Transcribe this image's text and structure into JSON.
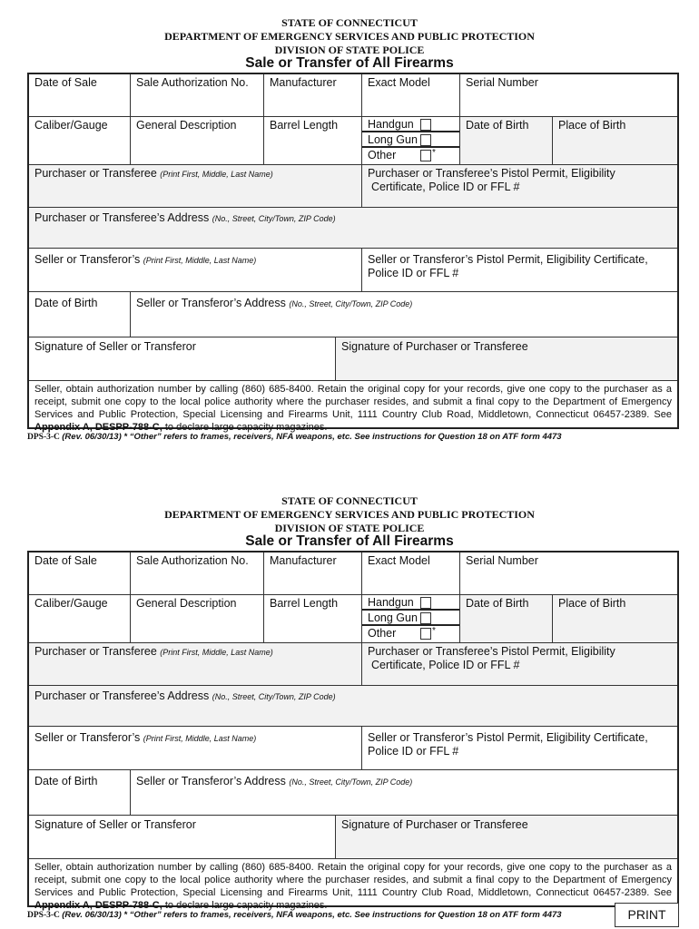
{
  "forms": [
    {
      "state": "STATE OF CONNECTICUT",
      "department": "DEPARTMENT OF EMERGENCY SERVICES AND PUBLIC PROTECTION",
      "division": "DIVISION OF STATE POLICE",
      "title": "Sale or Transfer of All Firearms",
      "date_of_sale": "Date of Sale",
      "sale_auth": "Sale Authorization No.",
      "manufacturer": "Manufacturer",
      "exact_model": "Exact Model",
      "serial_number": "Serial Number",
      "caliber": "Caliber/Gauge",
      "general_description": "General Description",
      "barrel_length": "Barrel Length",
      "handgun": "Handgun",
      "long_gun": "Long Gun",
      "other": "Other",
      "asterisk": "*",
      "date_of_birth": "Date of Birth",
      "place_of_birth": "Place of Birth",
      "purchaser": "Purchaser or Transferee",
      "purchaser_hint": "(Print First, Middle, Last Name)",
      "purchaser_permit": "Purchaser or Transferee’s Pistol Permit, Eligibility",
      "purchaser_permit2": "Certificate, Police ID or FFL #",
      "purchaser_address": "Purchaser or Transferee’s  Address",
      "address_hint": "(No., Street, City/Town, ZIP Code)",
      "seller": "Seller or Transferor’s",
      "seller_hint": "(Print First, Middle, Last Name)",
      "seller_permit": "Seller or Transferor’s Pistol Permit, Eligibility Certificate,",
      "seller_permit2": "Police ID or FFL #",
      "seller_dob": "Date of Birth",
      "seller_address": "Seller or Transferor’s Address",
      "seller_address_hint": "(No., Street, City/Town, ZIP Code)",
      "sig_seller": "Signature of Seller or Transferor",
      "sig_purchaser": "Signature of Purchaser or Transferee",
      "instructions": "Seller, obtain authorization number by calling (860) 685-8400. Retain the original copy for your records, give one copy to the purchaser as a receipt, submit one copy to the local police authority where the purchaser resides, and submit a final copy to the Department of Emergency Services and Public Protection, Special Licensing and Firearms Unit, 1111 Country Club Road, Middletown, Connecticut 06457-2389.  See",
      "appendix": "Appendix A, DESPP-788-C,",
      "appendix_rest": "to declare large capacity magazines.",
      "form_id": "DPS-3-C",
      "footnote": "(Rev. 06/30/13) * “Other” refers to frames, receivers, NFA weapons, etc. See instructions for Question 18 on ATF form 4473"
    },
    {
      "state": "STATE OF CONNECTICUT",
      "department": "DEPARTMENT OF EMERGENCY SERVICES AND PUBLIC PROTECTION",
      "division": "DIVISION OF STATE POLICE",
      "title": "Sale or Transfer of All Firearms",
      "date_of_sale": "Date of Sale",
      "sale_auth": "Sale Authorization No.",
      "manufacturer": "Manufacturer",
      "exact_model": "Exact Model",
      "serial_number": "Serial Number",
      "caliber": "Caliber/Gauge",
      "general_description": "General Description",
      "barrel_length": "Barrel Length",
      "handgun": "Handgun",
      "long_gun": "Long Gun",
      "other": "Other",
      "asterisk": "*",
      "date_of_birth": "Date of Birth",
      "place_of_birth": "Place of Birth",
      "purchaser": "Purchaser or Transferee",
      "purchaser_hint": "(Print First, Middle, Last Name)",
      "purchaser_permit": "Purchaser or Transferee’s Pistol Permit, Eligibility",
      "purchaser_permit2": "Certificate, Police ID or FFL #",
      "purchaser_address": "Purchaser or Transferee’s  Address",
      "address_hint": "(No., Street, City/Town, ZIP Code)",
      "seller": "Seller  or Transferor’s",
      "seller_hint": "(Print First, Middle, Last Name)",
      "seller_permit": "Seller or Transferor’s Pistol Permit, Eligibility Certificate,",
      "seller_permit2": "Police ID or FFL #",
      "seller_dob": "Date of Birth",
      "seller_address": "Seller or Transferor’s Address",
      "seller_address_hint": "(No., Street, City/Town, ZIP Code)",
      "sig_seller": "Signature of Seller or Transferor",
      "sig_purchaser": "Signature of Purchaser or Transferee",
      "instructions": "Seller, obtain authorization number by calling (860) 685-8400. Retain the original copy for your records, give one copy to the purchaser as a receipt, submit one copy to the local police authority where the purchaser resides, and submit a final copy to the Department of Emergency Services and Public Protection, Special Licensing and Firearms Unit, 1111 Country Club Road, Middletown, Connecticut 06457-2389.  See",
      "appendix": "Appendix A, DESPP-788-C,",
      "appendix_rest": "to declare large capacity magazines.",
      "form_id": "DPS-3-C",
      "footnote": "(Rev. 06/30/13) * “Other” refers to frames, receivers, NFA weapons, etc. See instructions for Question 18 on ATF form 4473"
    }
  ],
  "print_button": "PRINT",
  "colors": {
    "shade": "#f2f2f2",
    "border": "#222222"
  }
}
